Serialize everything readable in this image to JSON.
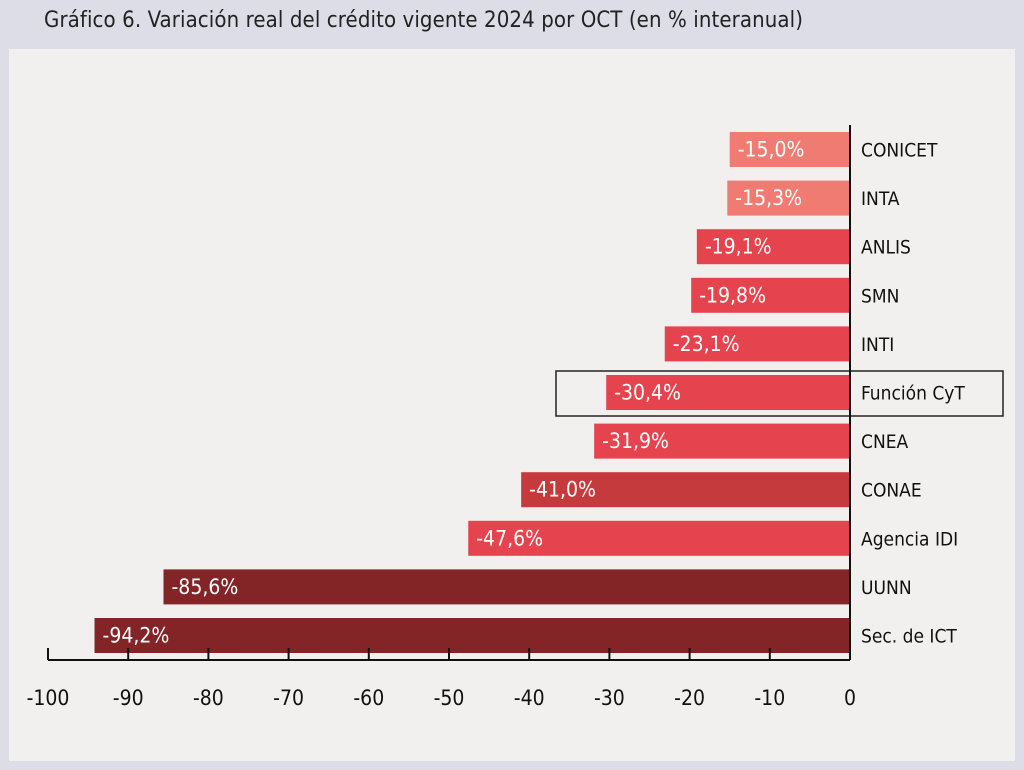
{
  "title": "Gráfico 6. Variación real del crédito vigente 2024 por OCT (en % interanual)",
  "chart_data": {
    "type": "bar",
    "orientation": "horizontal",
    "title": "Gráfico 6. Variación real del crédito vigente 2024 por OCT (en % interanual)",
    "xlim": [
      -100,
      0
    ],
    "xticks": [
      -100,
      -90,
      -80,
      -70,
      -60,
      -50,
      -40,
      -30,
      -20,
      -10,
      0
    ],
    "xtick_labels": [
      "-100",
      "-90",
      "-80",
      "-70",
      "-60",
      "-50",
      "-40",
      "-30",
      "-20",
      "-10",
      "0"
    ],
    "categories": [
      "CONICET",
      "INTA",
      "ANLIS",
      "SMN",
      "INTI",
      "Función CyT",
      "CNEA",
      "CONAE",
      "Agencia IDI",
      "UUNN",
      "Sec. de ICT"
    ],
    "values": [
      -15.0,
      -15.3,
      -19.1,
      -19.8,
      -23.1,
      -30.4,
      -31.9,
      -41.0,
      -47.6,
      -85.6,
      -94.2
    ],
    "value_labels": [
      "-15,0%",
      "-15,3%",
      "-19,1%",
      "-19,8%",
      "-23,1%",
      "-30,4%",
      "-31,9%",
      "-41,0%",
      "-47,6%",
      "-85,6%",
      "-94,2%"
    ],
    "colors": [
      "#ef7b72",
      "#ef7b72",
      "#e5444f",
      "#e5444f",
      "#e5444f",
      "#e5444f",
      "#e5444f",
      "#c53a3d",
      "#e5444f",
      "#832526",
      "#832526"
    ],
    "highlighted_category": "Función CyT",
    "grid": false,
    "legend": "none"
  }
}
